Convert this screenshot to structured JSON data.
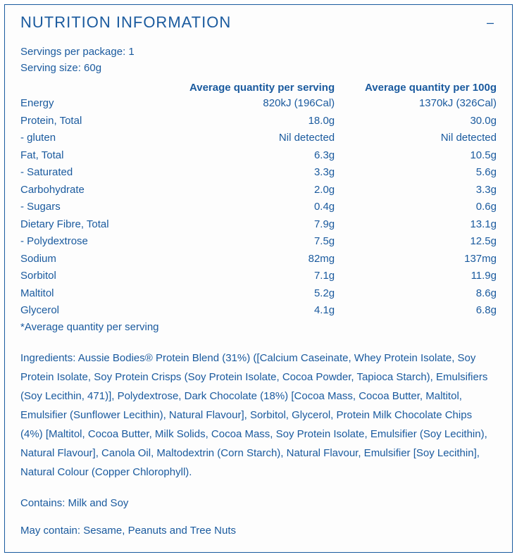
{
  "panel": {
    "title": "NUTRITION INFORMATION",
    "collapse_symbol": "–"
  },
  "meta": {
    "servings_per_package": "Servings per package: 1",
    "serving_size": "Serving size: 60g"
  },
  "columns": {
    "name": "",
    "per_serving": "Average quantity per serving",
    "per_100g": "Average quantity per 100g"
  },
  "rows": [
    {
      "name": "Energy",
      "serv": "820kJ (196Cal)",
      "p100": "1370kJ (326Cal)"
    },
    {
      "name": "Protein, Total",
      "serv": "18.0g",
      "p100": "30.0g"
    },
    {
      "name": "- gluten",
      "serv": "Nil detected",
      "p100": "Nil detected"
    },
    {
      "name": "Fat, Total",
      "serv": "6.3g",
      "p100": "10.5g"
    },
    {
      "name": "- Saturated",
      "serv": "3.3g",
      "p100": "5.6g"
    },
    {
      "name": "Carbohydrate",
      "serv": "2.0g",
      "p100": "3.3g"
    },
    {
      "name": "- Sugars",
      "serv": "0.4g",
      "p100": "0.6g"
    },
    {
      "name": "Dietary Fibre, Total",
      "serv": "7.9g",
      "p100": "13.1g"
    },
    {
      "name": "- Polydextrose",
      "serv": "7.5g",
      "p100": "12.5g"
    },
    {
      "name": "Sodium",
      "serv": "82mg",
      "p100": "137mg"
    },
    {
      "name": "Sorbitol",
      "serv": "7.1g",
      "p100": "11.9g"
    },
    {
      "name": "Maltitol",
      "serv": "5.2g",
      "p100": "8.6g"
    },
    {
      "name": "Glycerol",
      "serv": "4.1g",
      "p100": "6.8g"
    }
  ],
  "footnote": "*Average quantity per serving",
  "ingredients": "Ingredients: Aussie Bodies® Protein Blend (31%) ([Calcium Caseinate, Whey Protein Isolate, Soy Protein Isolate, Soy Protein Crisps (Soy Protein Isolate, Cocoa Powder, Tapioca Starch), Emulsifiers (Soy Lecithin, 471)], Polydextrose, Dark Chocolate (18%) [Cocoa Mass, Cocoa Butter, Maltitol, Emulsifier (Sunflower Lecithin), Natural Flavour], Sorbitol, Glycerol, Protein Milk Chocolate Chips (4%) [Maltitol, Cocoa Butter, Milk Solids, Cocoa Mass, Soy Protein Isolate, Emulsifier (Soy Lecithin), Natural Flavour], Canola Oil, Maltodextrin (Corn Starch), Natural Flavour, Emulsifier [Soy Lecithin], Natural Colour (Copper Chlorophyll).",
  "contains": "Contains: Milk and Soy",
  "may_contain": "May contain: Sesame, Peanuts and Tree Nuts",
  "colors": {
    "text": "#1a5a9e",
    "border": "#1a5a9e",
    "background": "#fdfdfd"
  }
}
